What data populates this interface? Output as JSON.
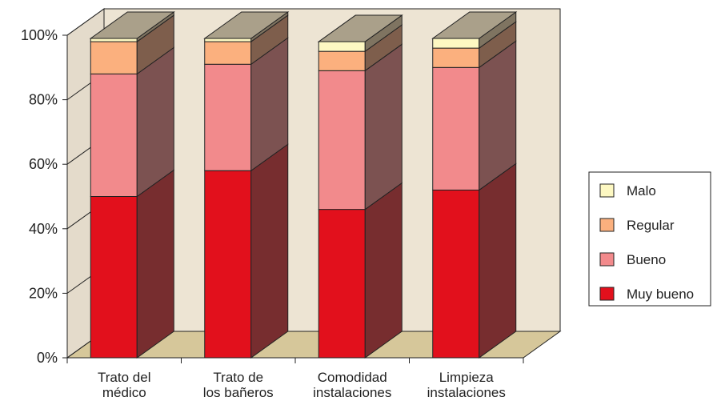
{
  "chart_data": {
    "type": "bar",
    "stacked": true,
    "percent_stacked": true,
    "three_d": true,
    "categories": [
      [
        "Trato del",
        "médico"
      ],
      [
        "Trato de",
        "los bañeros"
      ],
      [
        "Comodidad",
        "instalaciones"
      ],
      [
        "Limpieza",
        "instalaciones"
      ]
    ],
    "series": [
      {
        "name": "Muy bueno",
        "color": "#e2101c",
        "values": [
          50,
          58,
          46,
          52
        ]
      },
      {
        "name": "Bueno",
        "color": "#f28a8c",
        "values": [
          38,
          33,
          43,
          38
        ]
      },
      {
        "name": "Regular",
        "color": "#fbb07e",
        "values": [
          10,
          7,
          6,
          6
        ]
      },
      {
        "name": "Malo",
        "color": "#fdf8c2",
        "values": [
          1,
          1,
          3,
          3
        ]
      }
    ],
    "ylim": [
      0,
      100
    ],
    "yticks": [
      "0%",
      "20%",
      "40%",
      "60%",
      "80%",
      "100%"
    ],
    "legend_position": "right",
    "wall_color": "#ede4d3",
    "floor_color": "#d6c79a",
    "grid": false
  }
}
